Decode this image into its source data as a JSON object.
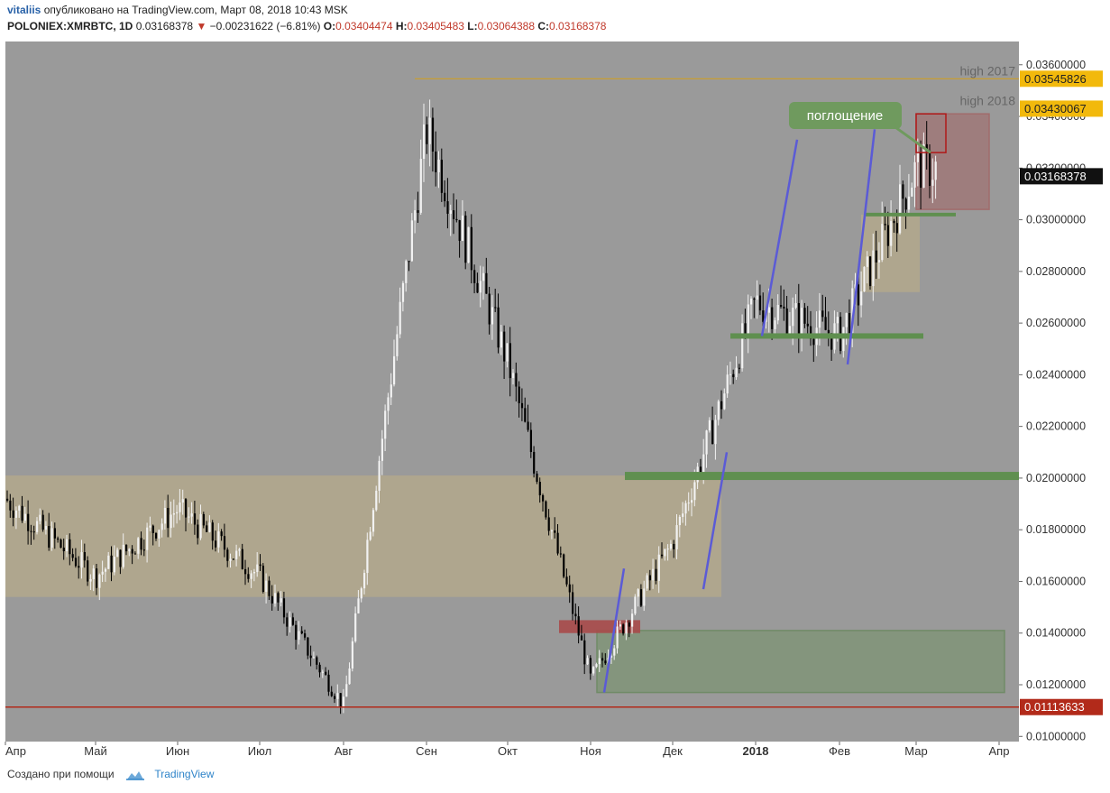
{
  "header": {
    "user": "vitaliis",
    "published": "опубликовано на TradingView.com, Март 08, 2018 10:43 MSK",
    "symbol": "POLONIEX:XMRBTC, 1D",
    "last": "0.03168378",
    "change": "−0.00231622 (−6.81%)",
    "o_label": "O:",
    "o_value": "0.03404474",
    "h_label": "H:",
    "h_value": "0.03405483",
    "l_label": "L:",
    "l_value": "0.03064388",
    "c_label": "C:",
    "c_value": "0.03168378"
  },
  "footer": {
    "created": "Создано при помощи",
    "brand": "TradingView",
    "logo_icon": "tradingview-cloud-icon"
  },
  "colors": {
    "plot_bg": "#9a9a9a",
    "up_candle": "#f2f2f2",
    "down_candle": "#000000",
    "range_zone": "#b5a98a",
    "green_zone": "#6a8f5a",
    "red_zone": "#a84a4a",
    "trend_line": "#5b5bd6",
    "high_line": "#d4a017",
    "support_line": "#b22a1a"
  },
  "chart_data": {
    "type": "candlestick",
    "ylim": [
      0.0098,
      0.0369
    ],
    "x_ticks": [
      "Апр",
      "Май",
      "Июн",
      "Июл",
      "Авг",
      "Сен",
      "Окт",
      "Ноя",
      "Дек",
      "2018",
      "Фев",
      "Мар",
      "Апр"
    ],
    "y_ticks": [
      "0.01000000",
      "0.01200000",
      "0.01400000",
      "0.01600000",
      "0.01800000",
      "0.02000000",
      "0.02200000",
      "0.02400000",
      "0.02600000",
      "0.02800000",
      "0.03000000",
      "0.03200000",
      "0.03400000",
      "0.03600000"
    ],
    "price_labels": [
      {
        "value": 0.03545826,
        "text": "0.03545826",
        "style": "yellow",
        "caption": "high 2017"
      },
      {
        "value": 0.03430067,
        "text": "0.03430067",
        "style": "yellow",
        "caption": "high 2018"
      },
      {
        "value": 0.03168378,
        "text": "0.03168378",
        "style": "black",
        "caption": ""
      },
      {
        "value": 0.01113633,
        "text": "0.01113633",
        "style": "red",
        "caption": ""
      }
    ],
    "annotation": "поглощение",
    "series_path": [
      [
        "Апр",
        0.0192
      ],
      [
        "Май",
        0.0162
      ],
      [
        "Июн",
        0.0188
      ],
      [
        "Июл",
        0.0162
      ],
      [
        "Авг",
        0.0112
      ],
      [
        "Сен",
        0.0335
      ],
      [
        "Окт",
        0.0245
      ],
      [
        "Ноя",
        0.0122
      ],
      [
        "Дек",
        0.0175
      ],
      [
        "2018",
        0.0268
      ],
      [
        "Фев",
        0.0255
      ],
      [
        "Мар",
        0.032
      ]
    ],
    "zones": [
      {
        "kind": "range",
        "from": "Апр",
        "to": "Дек",
        "ylow": 0.0154,
        "yhigh": 0.0201
      },
      {
        "kind": "range",
        "from": "Фев",
        "to": "Мар",
        "ylow": 0.0272,
        "yhigh": 0.0302
      },
      {
        "kind": "support",
        "from": "Ноя",
        "to": "Апр",
        "ylow": 0.0117,
        "yhigh": 0.0141
      },
      {
        "kind": "resistance",
        "from": "Мар",
        "to": "Апр",
        "ylow": 0.0304,
        "yhigh": 0.0341
      }
    ],
    "levels": [
      0.0302,
      0.0255,
      0.0201
    ],
    "grid": false
  }
}
